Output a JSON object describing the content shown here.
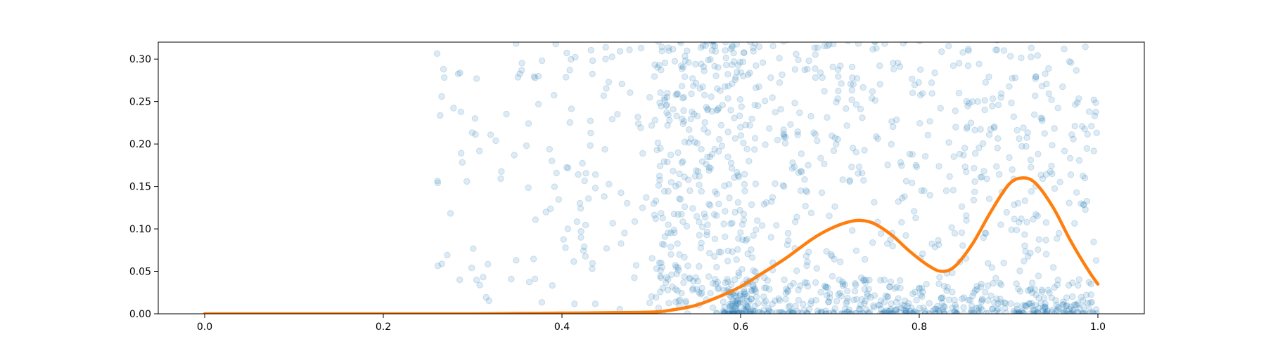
{
  "chart_data": {
    "type": "scatter",
    "title": "",
    "xlabel": "",
    "ylabel": "",
    "xlim": [
      -0.052,
      1.052
    ],
    "ylim": [
      0.0,
      0.32
    ],
    "x_ticks": [
      0.0,
      0.2,
      0.4,
      0.6,
      0.8,
      1.0
    ],
    "x_tick_labels": [
      "0.0",
      "0.2",
      "0.4",
      "0.6",
      "0.8",
      "1.0"
    ],
    "y_ticks": [
      0.0,
      0.05,
      0.1,
      0.15,
      0.2,
      0.25,
      0.3
    ],
    "y_tick_labels": [
      "0.00",
      "0.05",
      "0.10",
      "0.15",
      "0.20",
      "0.25",
      "0.30"
    ],
    "grid": false,
    "legend": "none",
    "colors": {
      "scatter": "#1f77b4",
      "curve": "#ff7f0e"
    },
    "scatter": {
      "marker": "circle-outline",
      "alpha": 0.15,
      "x_range": [
        0.26,
        1.0
      ],
      "note_density": "sparse above ~0.1, dense near y=0 for x>0.58",
      "approx_point_count": 1500
    },
    "series": [
      {
        "x": [
          0.0,
          0.1,
          0.2,
          0.3,
          0.35,
          0.4,
          0.45,
          0.5,
          0.52,
          0.55,
          0.58,
          0.6,
          0.62,
          0.65,
          0.68,
          0.7,
          0.72,
          0.735,
          0.75,
          0.77,
          0.79,
          0.81,
          0.825,
          0.84,
          0.86,
          0.88,
          0.9,
          0.915,
          0.93,
          0.95,
          0.97,
          0.99,
          1.0
        ],
        "y": [
          0.0,
          0.0,
          0.0,
          0.0,
          0.0005,
          0.0008,
          0.0012,
          0.002,
          0.004,
          0.01,
          0.022,
          0.032,
          0.045,
          0.065,
          0.088,
          0.1,
          0.108,
          0.11,
          0.106,
          0.092,
          0.073,
          0.057,
          0.05,
          0.056,
          0.083,
          0.12,
          0.152,
          0.16,
          0.154,
          0.125,
          0.085,
          0.05,
          0.035
        ]
      }
    ]
  }
}
